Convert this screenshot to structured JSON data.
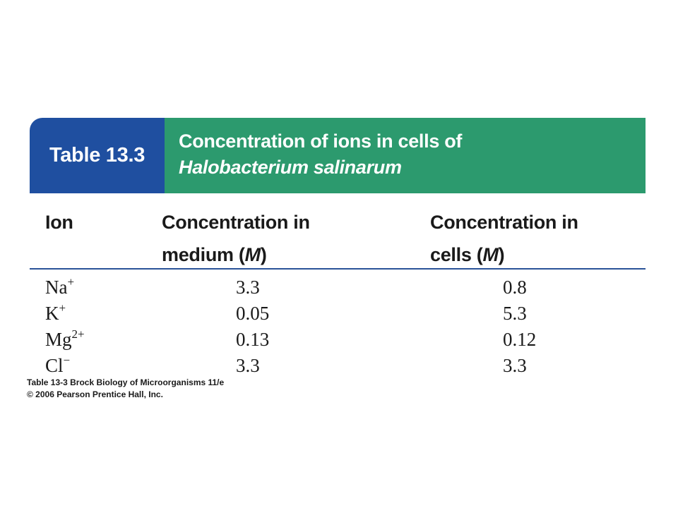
{
  "table": {
    "label": "Table 13.3",
    "title_line1": "Concentration of ions in cells of",
    "title_line2": "Halobacterium salinarum",
    "headers": {
      "ion": "Ion",
      "medium_line1": "Concentration in",
      "medium_line2_prefix": "medium (",
      "medium_unit": "M",
      "medium_line2_suffix": ")",
      "cells_line1": "Concentration in",
      "cells_line2_prefix": "cells (",
      "cells_unit": "M",
      "cells_line2_suffix": ")"
    },
    "rows": [
      {
        "ion": "Na",
        "charge": "+",
        "medium": "3.3",
        "cells": "0.8"
      },
      {
        "ion": "K",
        "charge": "+",
        "medium": "0.05",
        "cells": "5.3"
      },
      {
        "ion": "Mg",
        "charge": "2+",
        "medium": "0.13",
        "cells": "0.12"
      },
      {
        "ion": "Cl",
        "charge": "−",
        "medium": "3.3",
        "cells": "3.3"
      }
    ]
  },
  "footnote": {
    "line1": "Table 13-3  Brock Biology of Microorganisms 11/e",
    "line2": "© 2006 Pearson Prentice Hall, Inc."
  }
}
